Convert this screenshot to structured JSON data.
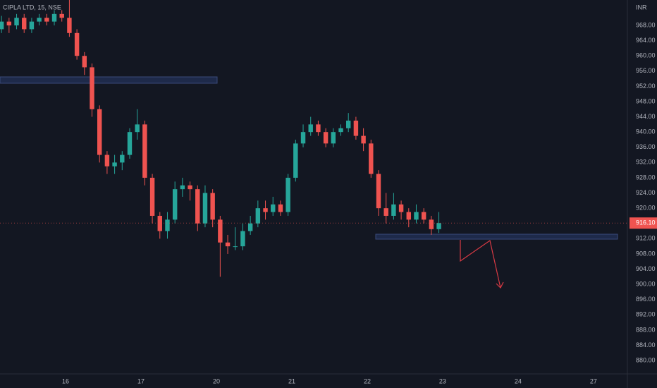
{
  "chart_data": {
    "type": "candlestick",
    "title": "CIPLA LTD, 15, NSE",
    "y_axis_label": "INR",
    "up_color": "#26a69a",
    "down_color": "#ef5350",
    "grid": false,
    "xlim": [
      -0.87,
      7.45
    ],
    "xticks": [
      {
        "value": 0,
        "label": "16"
      },
      {
        "value": 1,
        "label": "17"
      },
      {
        "value": 2,
        "label": "20"
      },
      {
        "value": 3,
        "label": "21"
      },
      {
        "value": 4,
        "label": "22"
      },
      {
        "value": 5,
        "label": "23"
      },
      {
        "value": 6,
        "label": "24"
      },
      {
        "value": 7,
        "label": "27"
      }
    ],
    "ylim": [
      876.5,
      974.67
    ],
    "yticks": [
      {
        "value": 880,
        "label": "880.00"
      },
      {
        "value": 884,
        "label": "884.00"
      },
      {
        "value": 888,
        "label": "888.00"
      },
      {
        "value": 892,
        "label": "892.00"
      },
      {
        "value": 896,
        "label": "896.00"
      },
      {
        "value": 900,
        "label": "900.00"
      },
      {
        "value": 904,
        "label": "904.00"
      },
      {
        "value": 908,
        "label": "908.00"
      },
      {
        "value": 912,
        "label": "912.00"
      },
      {
        "value": 916,
        "label": "916.00"
      },
      {
        "value": 920,
        "label": "920.00"
      },
      {
        "value": 924,
        "label": "924.00"
      },
      {
        "value": 928,
        "label": "928.00"
      },
      {
        "value": 932,
        "label": "932.00"
      },
      {
        "value": 936,
        "label": "936.00"
      },
      {
        "value": 940,
        "label": "940.00"
      },
      {
        "value": 944,
        "label": "944.00"
      },
      {
        "value": 948,
        "label": "948.00"
      },
      {
        "value": 952,
        "label": "952.00"
      },
      {
        "value": 956,
        "label": "956.00"
      },
      {
        "value": 960,
        "label": "960.00"
      },
      {
        "value": 964,
        "label": "964.00"
      },
      {
        "value": 968,
        "label": "968.00"
      }
    ],
    "last_price": {
      "value": 916.1,
      "label": "916.10"
    },
    "x": [
      -0.85,
      -0.75,
      -0.65,
      -0.55,
      -0.45,
      -0.35,
      -0.25,
      -0.15,
      -0.05,
      0.05,
      0.15,
      0.25,
      0.35,
      0.45,
      0.55,
      0.65,
      0.75,
      0.85,
      0.95,
      1.05,
      1.15,
      1.25,
      1.35,
      1.45,
      1.55,
      1.65,
      1.75,
      1.85,
      1.95,
      2.05,
      2.15,
      2.25,
      2.35,
      2.45,
      2.55,
      2.65,
      2.75,
      2.85,
      2.95,
      3.05,
      3.15,
      3.25,
      3.35,
      3.45,
      3.55,
      3.65,
      3.75,
      3.85,
      3.95,
      4.05,
      4.15,
      4.25,
      4.35,
      4.45,
      4.55,
      4.65,
      4.75,
      4.85,
      4.95
    ],
    "open": [
      967,
      969,
      968,
      970,
      967,
      969,
      970,
      969,
      971,
      970,
      966,
      960,
      957,
      946,
      934,
      931,
      932,
      934,
      940,
      942,
      928,
      918,
      914,
      917,
      925,
      926,
      925,
      916,
      924,
      917,
      911,
      910,
      910,
      914,
      916,
      920,
      919,
      921,
      919,
      928,
      937,
      940,
      942,
      940,
      937,
      940,
      941,
      943,
      939,
      937,
      929,
      920,
      918,
      921,
      919,
      917,
      919,
      917,
      914.5
    ],
    "high": [
      970.5,
      970,
      971,
      971,
      970,
      971,
      971,
      972,
      972,
      975,
      967,
      961,
      958,
      947,
      935,
      934,
      935,
      941,
      946,
      943,
      929,
      919,
      919,
      927,
      928,
      927,
      926,
      926,
      925,
      918,
      913,
      915,
      916,
      918,
      922,
      922,
      923,
      922,
      929,
      938,
      942,
      944,
      943,
      941,
      941,
      942,
      945,
      944,
      941,
      938,
      930,
      924,
      924,
      922,
      920,
      921,
      920,
      918,
      919
    ],
    "low": [
      966,
      966,
      967,
      966,
      966,
      968,
      968,
      968,
      969,
      965,
      959,
      955,
      944,
      932,
      929,
      929,
      930,
      933,
      938,
      926,
      916,
      912,
      912,
      916,
      923,
      922,
      914,
      915,
      915,
      902,
      908,
      909,
      909,
      913,
      915,
      917,
      918,
      918,
      918,
      927,
      936,
      939,
      939,
      936,
      936,
      939,
      940,
      938,
      935,
      928,
      918,
      916,
      917,
      917,
      915,
      916,
      916,
      913,
      913.5
    ],
    "close": [
      969,
      968,
      970,
      967,
      969,
      970,
      969,
      971,
      970,
      966,
      960,
      957,
      946,
      934,
      931,
      932,
      934,
      940,
      942,
      928,
      918,
      914,
      917,
      925,
      926,
      925,
      916,
      924,
      917,
      911,
      910,
      910,
      914,
      916,
      920,
      919,
      921,
      919,
      928,
      937,
      940,
      942,
      940,
      937,
      940,
      941,
      943,
      939,
      937,
      929,
      920,
      918,
      921,
      919,
      917,
      919,
      917,
      914.5,
      916.1
    ]
  }
}
